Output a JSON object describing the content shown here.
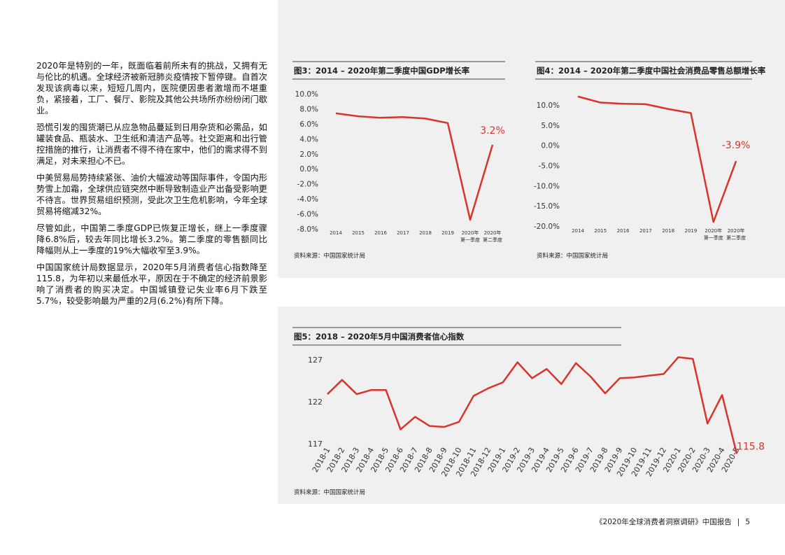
{
  "text": {
    "paragraphs": [
      "2020年是特别的一年，既面临着前所未有的挑战，又拥有无与伦比的机遇。全球经济被新冠肺炎疫情按下暂停键。自首次发现该病毒以来，短短几周内，医院便因患者激增而不堪重负，紧接着，工厂、餐厅、影院及其他公共场所亦纷纷闭门歇业。",
      "恐慌引发的囤货潮已从应急物品蔓延到日用杂货和必需品，如罐装食品、瓶装水、卫生纸和清洁产品等。社交距离和出行管控措施的推行，让消费者不得不待在家中，他们的需求得不到满足，对未来担心不已。",
      "中美贸易局势持续紧张、油价大幅波动等国际事件，令国内形势雪上加霜，全球供应链突然中断导致制造业产出备受影响更不待言。世界贸易组织预测，受此次卫生危机影响，今年全球贸易将缩减32%。",
      "尽管如此，中国第二季度GDP已恢复正增长，继上一季度骤降6.8%后，较去年同比增长3.2%。第二季度的零售额同比降幅则从上一季度的19%大幅收窄至3.9%。",
      "中国国家统计局数据显示，2020年5月消费者信心指数降至115.8，为年初以来最低水平，原因在于不确定的经济前景影响了消费者的购买决定。中国城镇登记失业率6月下跌至5.7%，较受影响最为严重的2月(6.2%)有所下降。"
    ]
  },
  "footer": {
    "title": "《2020年全球消费者洞察调研》中国报告",
    "separator": "|",
    "page": "5"
  },
  "chart_data": [
    {
      "type": "line",
      "title": "图3：2014 – 2020年第二季度中国GDP增长率",
      "source": "资料来源：中国国家统计局",
      "color": "#d9342b",
      "categories": [
        "2014",
        "2015",
        "2016",
        "2017",
        "2018",
        "2019",
        "2020年\n第一季度",
        "2020年\n第二季度"
      ],
      "values": [
        7.4,
        7.0,
        6.8,
        6.9,
        6.7,
        6.1,
        -6.8,
        3.2
      ],
      "value_labels": [
        null,
        null,
        null,
        null,
        null,
        null,
        null,
        "3.2%"
      ],
      "ylim": [
        -8,
        10
      ],
      "yticks": [
        {
          "value": 10,
          "label": "10.0%"
        },
        {
          "value": 8,
          "label": "8.0%"
        },
        {
          "value": 6,
          "label": "6.0%"
        },
        {
          "value": 4,
          "label": "4.0%"
        },
        {
          "value": 2,
          "label": "2.0%"
        },
        {
          "value": 0,
          "label": "0.0%"
        },
        {
          "value": -2,
          "label": "-2.0%"
        },
        {
          "value": -4,
          "label": "-4.0%"
        },
        {
          "value": -6,
          "label": "-6.0%"
        },
        {
          "value": -8,
          "label": "-8.0%"
        }
      ]
    },
    {
      "type": "line",
      "title": "图4：2014 – 2020年第二季度中国社会消费品零售总额增长率",
      "source": "资料来源：中国国家统计局",
      "color": "#d9342b",
      "categories": [
        "2014",
        "2015",
        "2016",
        "2017",
        "2018",
        "2019",
        "2020年\n第一季度",
        "2020年\n第二季度"
      ],
      "values": [
        12.1,
        10.6,
        10.3,
        10.2,
        9.0,
        8.0,
        -19.0,
        -3.9
      ],
      "value_labels": [
        null,
        null,
        null,
        null,
        null,
        null,
        null,
        "-3.9%"
      ],
      "ylim": [
        -20,
        12
      ],
      "yticks": [
        {
          "value": 10,
          "label": "10.0%"
        },
        {
          "value": 5,
          "label": "5.0%"
        },
        {
          "value": 0,
          "label": "0.0%"
        },
        {
          "value": -5,
          "label": "-5.0%"
        },
        {
          "value": -10,
          "label": "-10.0%"
        },
        {
          "value": -15,
          "label": "-15.0%"
        },
        {
          "value": -20,
          "label": "-20.0%"
        }
      ]
    },
    {
      "type": "line",
      "title": "图5：2018 – 2020年5月中国消费者信心指数",
      "source": "资料来源：中国国家统计局",
      "color": "#d9342b",
      "categories": [
        "2018-1",
        "2018-2",
        "2018-3",
        "2018-4",
        "2018-5",
        "2018-6",
        "2018-7",
        "2018-8",
        "2018-9",
        "2018-10",
        "2018-11",
        "2018-12",
        "2019-1",
        "2019-2",
        "2019-3",
        "2019-4",
        "2019-5",
        "2019-6",
        "2019-7",
        "2019-8",
        "2019-9",
        "2019-10",
        "2019-11",
        "2019-12",
        "2020-1",
        "2020-2",
        "2020-3",
        "2020-4",
        "2020-5"
      ],
      "values": [
        122.9,
        124.6,
        122.9,
        123.4,
        123.4,
        118.7,
        120.2,
        119.1,
        119.0,
        119.6,
        122.7,
        123.6,
        124.3,
        126.7,
        124.8,
        125.9,
        124.1,
        126.6,
        125.0,
        123.0,
        124.8,
        124.9,
        125.1,
        125.3,
        127.3,
        127.1,
        119.4,
        122.8,
        115.8
      ],
      "value_labels": [
        null,
        null,
        null,
        null,
        null,
        null,
        null,
        null,
        null,
        null,
        null,
        null,
        null,
        null,
        null,
        null,
        null,
        null,
        null,
        null,
        null,
        null,
        null,
        null,
        null,
        null,
        null,
        null,
        "115.8"
      ],
      "ylim": [
        115.5,
        128
      ],
      "yticks": [
        117,
        122,
        127
      ]
    }
  ]
}
